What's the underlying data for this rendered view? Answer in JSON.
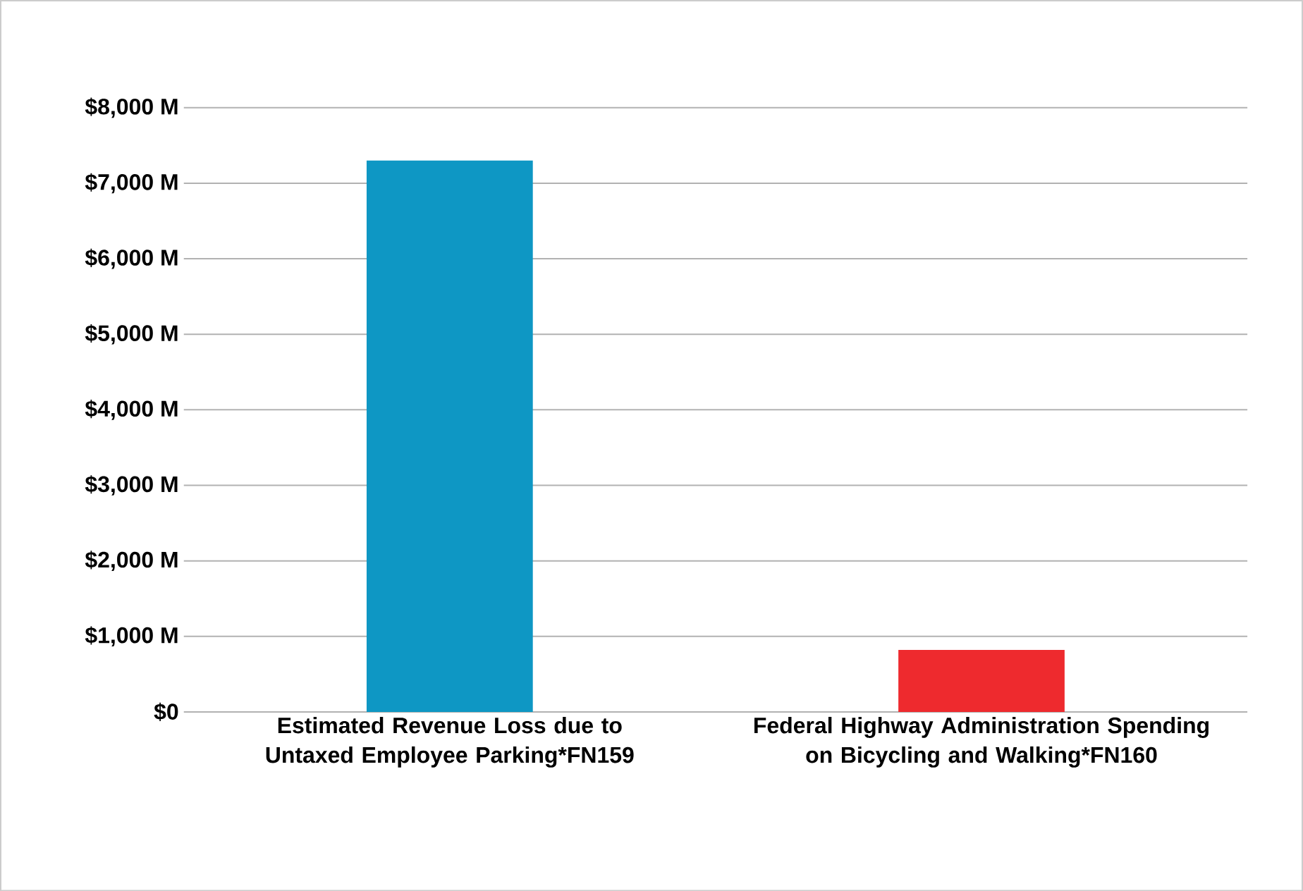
{
  "chart_data": {
    "type": "bar",
    "categories": [
      "Estimated Revenue Loss due to Untaxed Employee Parking*FN159",
      "Federal Highway Administration Spending on Bicycling and Walking*FN160"
    ],
    "values": [
      7300,
      820
    ],
    "colors": [
      "#0e97c4",
      "#ee2a2e"
    ],
    "ylim": [
      0,
      8000
    ],
    "yticks": [
      {
        "value": 0,
        "label": "$0"
      },
      {
        "value": 1000,
        "label": "$1,000 M"
      },
      {
        "value": 2000,
        "label": "$2,000 M"
      },
      {
        "value": 3000,
        "label": "$3,000 M"
      },
      {
        "value": 4000,
        "label": "$4,000 M"
      },
      {
        "value": 5000,
        "label": "$5,000 M"
      },
      {
        "value": 6000,
        "label": "$6,000 M"
      },
      {
        "value": 7000,
        "label": "$7,000 M"
      },
      {
        "value": 8000,
        "label": "$8,000 M"
      }
    ],
    "grid": "y"
  }
}
